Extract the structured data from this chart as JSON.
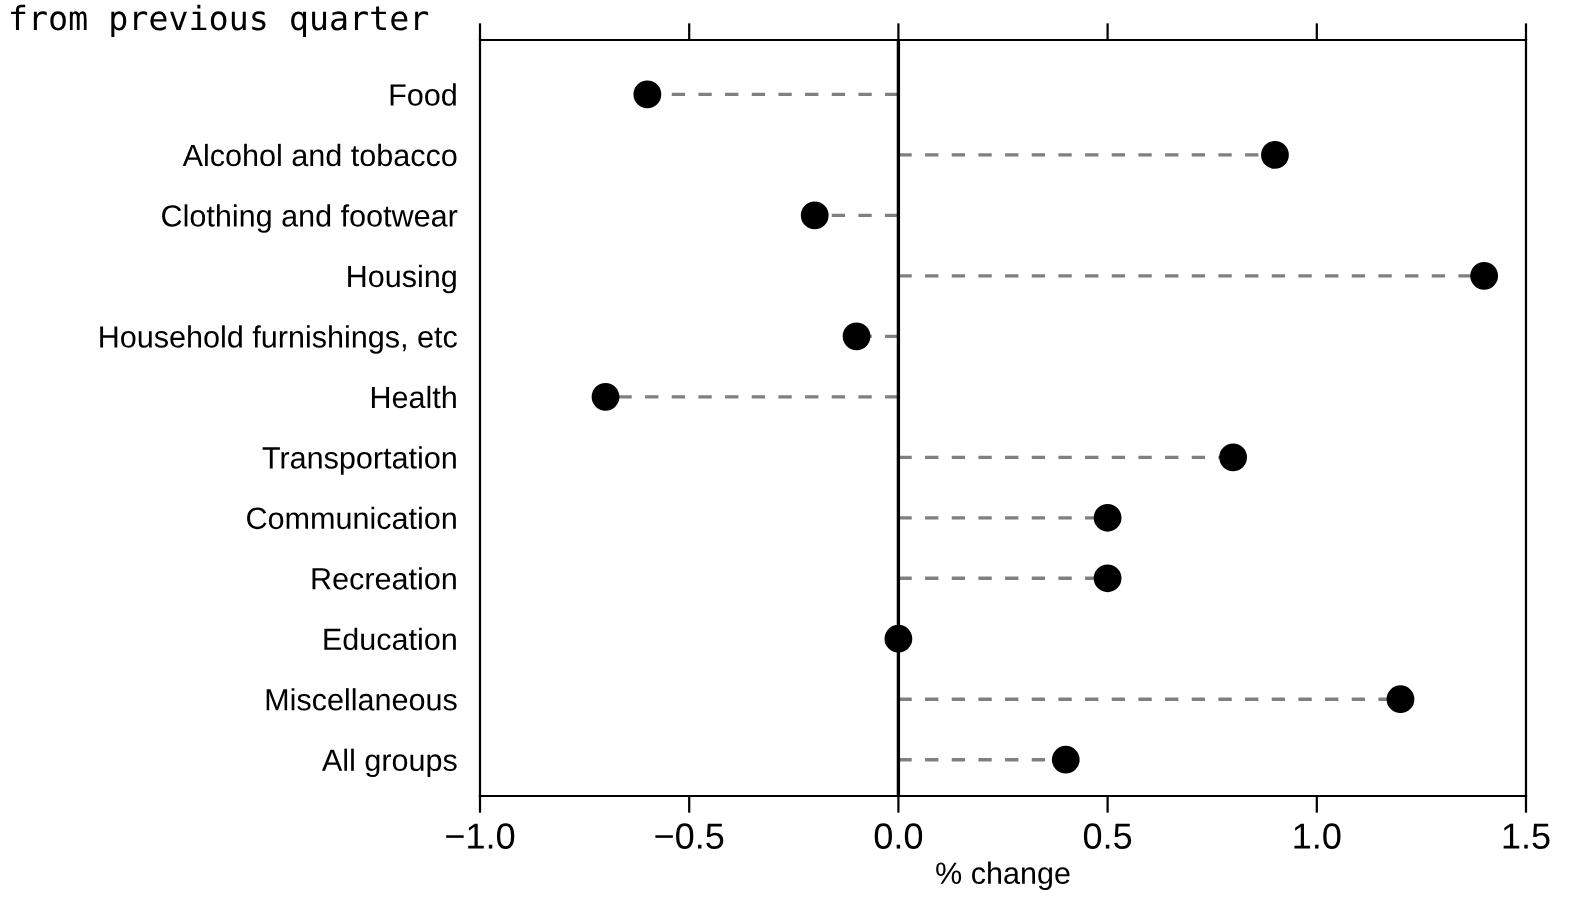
{
  "chart_data": {
    "type": "lollipop",
    "orientation": "horizontal",
    "title": "from previous quarter",
    "xlabel": "% change",
    "categories": [
      "Food",
      "Alcohol and tobacco",
      "Clothing and footwear",
      "Housing",
      "Household furnishings, etc",
      "Health",
      "Transportation",
      "Communication",
      "Recreation",
      "Education",
      "Miscellaneous",
      "All groups"
    ],
    "series": [
      {
        "color": "#000000",
        "values": [
          -0.6,
          0.9,
          -0.2,
          1.4,
          -0.1,
          -0.7,
          0.8,
          0.5,
          0.5,
          0.0,
          1.2,
          0.4
        ]
      }
    ],
    "xlim": [
      -1.0,
      1.5
    ],
    "xticks": [
      {
        "value": -1.0,
        "label": "−1.0"
      },
      {
        "value": -0.5,
        "label": "−0.5"
      },
      {
        "value": 0.0,
        "label": "0.0"
      },
      {
        "value": 0.5,
        "label": "0.5"
      },
      {
        "value": 1.0,
        "label": "1.0"
      },
      {
        "value": 1.5,
        "label": "1.5"
      }
    ],
    "ref_lines": [
      {
        "axis": "x",
        "value": 0,
        "color": "#000000"
      }
    ],
    "marker": "circle",
    "line_style": "dashed",
    "grid": false
  }
}
